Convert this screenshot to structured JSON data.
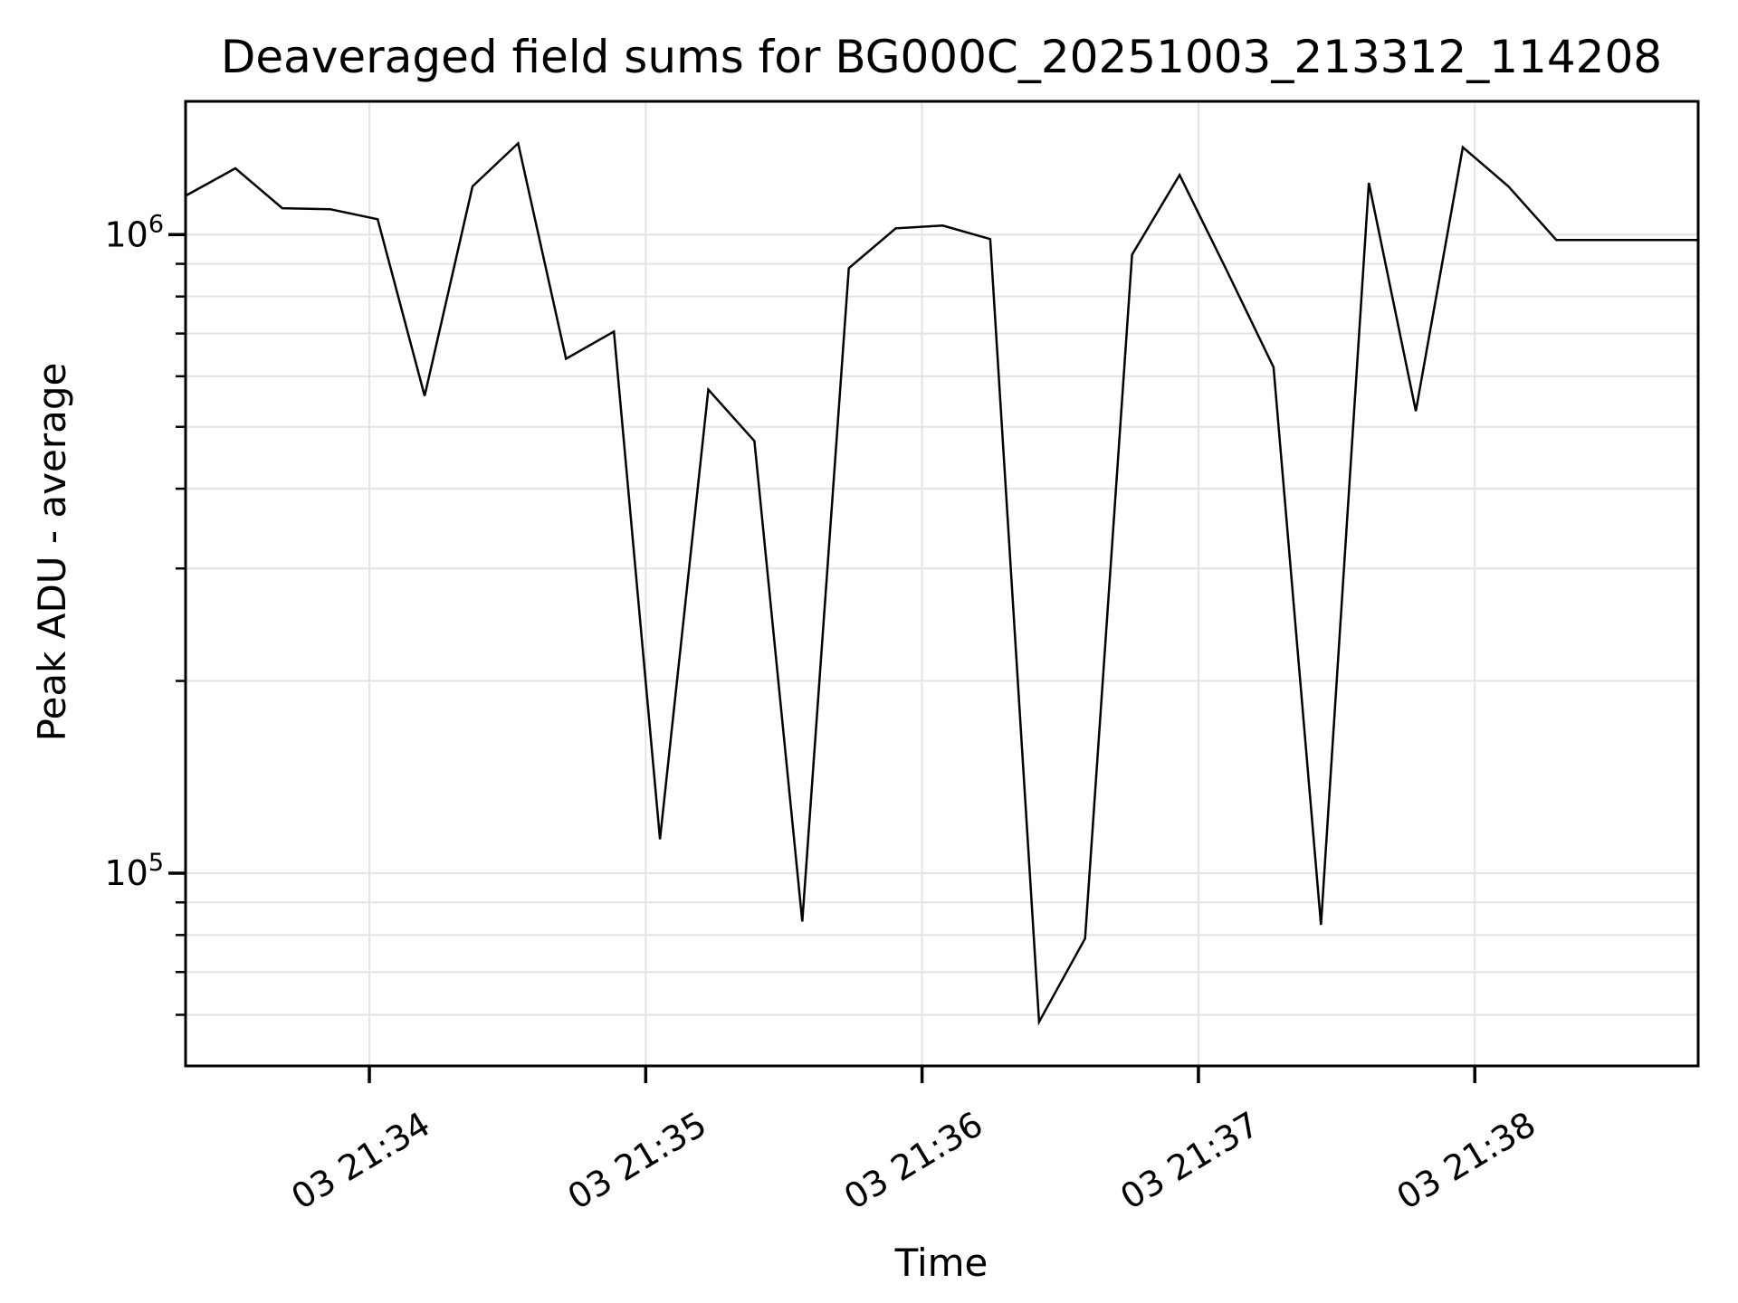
{
  "chart_data": {
    "type": "line",
    "title": "Deaveraged field sums for BG000C_20251003_213312_114208",
    "xlabel": "Time",
    "ylabel": "Peak ADU - average",
    "grid": true,
    "legend_position": "none",
    "yscale": "log",
    "ylim": [
      49900,
      1617000
    ],
    "x_range_seconds_since_21_33": [
      20.1,
      348.5
    ],
    "x_ticks": [
      {
        "t": 60,
        "label": "03 21:34"
      },
      {
        "t": 120,
        "label": "03 21:35"
      },
      {
        "t": 180,
        "label": "03 21:36"
      },
      {
        "t": 240,
        "label": "03 21:37"
      },
      {
        "t": 300,
        "label": "03 21:38"
      }
    ],
    "y_major_ticks": [
      {
        "value": 1000000,
        "mantissa": "10",
        "exponent": "6"
      },
      {
        "value": 100000,
        "mantissa": "10",
        "exponent": "5"
      }
    ],
    "y_minor_values": [
      900000,
      800000,
      700000,
      600000,
      500000,
      400000,
      300000,
      200000,
      90000,
      80000,
      70000,
      60000
    ],
    "series": [
      {
        "name": "Peak ADU - average",
        "color": "#000000",
        "points_t_seconds_since_21_33": [
          20.1,
          30.9,
          41.1,
          51.5,
          61.8,
          72.0,
          82.4,
          92.3,
          102.7,
          113.1,
          123.1,
          133.6,
          143.6,
          154.0,
          164.1,
          174.3,
          184.5,
          194.8,
          205.4,
          215.4,
          225.6,
          235.9,
          246.1,
          256.3,
          266.6,
          277.0,
          287.2,
          297.4,
          307.3,
          317.7,
          327.9,
          338.1,
          348.5
        ],
        "values_adu": [
          1150000,
          1270000,
          1100000,
          1096000,
          1057000,
          559000,
          1190000,
          1390000,
          639000,
          705000,
          113000,
          572000,
          475000,
          84000,
          886000,
          1023000,
          1033000,
          984000,
          58500,
          79000,
          930000,
          1240000,
          880000,
          620000,
          83000,
          1205000,
          529000,
          1370000,
          1190000,
          981000,
          981000,
          981000,
          981000
        ]
      }
    ]
  },
  "colors": {
    "line": "#000000",
    "grid": "#e3e3e3",
    "spine": "#000000",
    "text": "#000000",
    "background": "#ffffff"
  }
}
